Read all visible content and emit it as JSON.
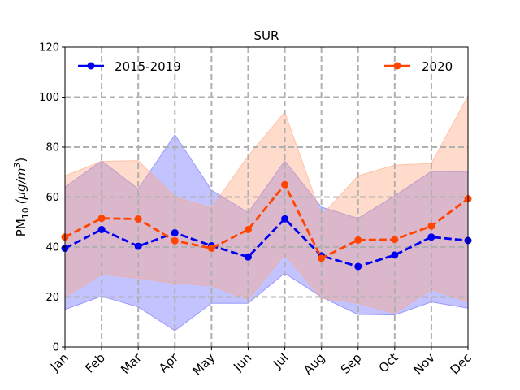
{
  "chart_data": {
    "type": "line",
    "title": "SUR",
    "xlabel": "",
    "ylabel": "PM10 (μg/m3)",
    "ylabel_main": "PM",
    "ylabel_sub": "10",
    "ylabel_unit": "(μg/m",
    "ylabel_sup": "3",
    "ylabel_close": ")",
    "categories": [
      "Jan",
      "Feb",
      "Mar",
      "Apr",
      "May",
      "Jun",
      "Jul",
      "Aug",
      "Sep",
      "Oct",
      "Nov",
      "Dec"
    ],
    "ylim": [
      0,
      120
    ],
    "yticks": [
      0,
      20,
      40,
      60,
      80,
      100,
      120
    ],
    "grid": true,
    "legend": [
      {
        "name": "2015-2019",
        "placement": "top-left"
      },
      {
        "name": "2020",
        "placement": "top-right"
      }
    ],
    "series": [
      {
        "name": "2015-2019",
        "color": "#0000ee",
        "band_color": "#6a6aff",
        "values": [
          39.5,
          47,
          40.3,
          45.7,
          40.5,
          36,
          51.3,
          36.5,
          32.2,
          36.8,
          44,
          42.6
        ],
        "upper": [
          64,
          74.5,
          63.3,
          85,
          62.8,
          53.8,
          74.5,
          56,
          51.5,
          60.5,
          70.3,
          70
        ],
        "lower": [
          15,
          20.3,
          16,
          6.5,
          17.5,
          17.5,
          29.5,
          20,
          13,
          12.8,
          18,
          15.5
        ]
      },
      {
        "name": "2020",
        "color": "#ff4500",
        "band_color": "#ffa680",
        "values": [
          44,
          51.5,
          51.2,
          42.5,
          39.5,
          47,
          65,
          35.5,
          42.8,
          43,
          48.4,
          59.3
        ],
        "upper": [
          68.5,
          74.3,
          74.6,
          60,
          55.7,
          76.5,
          94,
          52.5,
          68.5,
          72.8,
          73.5,
          100.5
        ],
        "lower": [
          20,
          29,
          27.5,
          25.5,
          24.5,
          19,
          37,
          19.5,
          17.5,
          13.5,
          23,
          18
        ]
      }
    ]
  }
}
